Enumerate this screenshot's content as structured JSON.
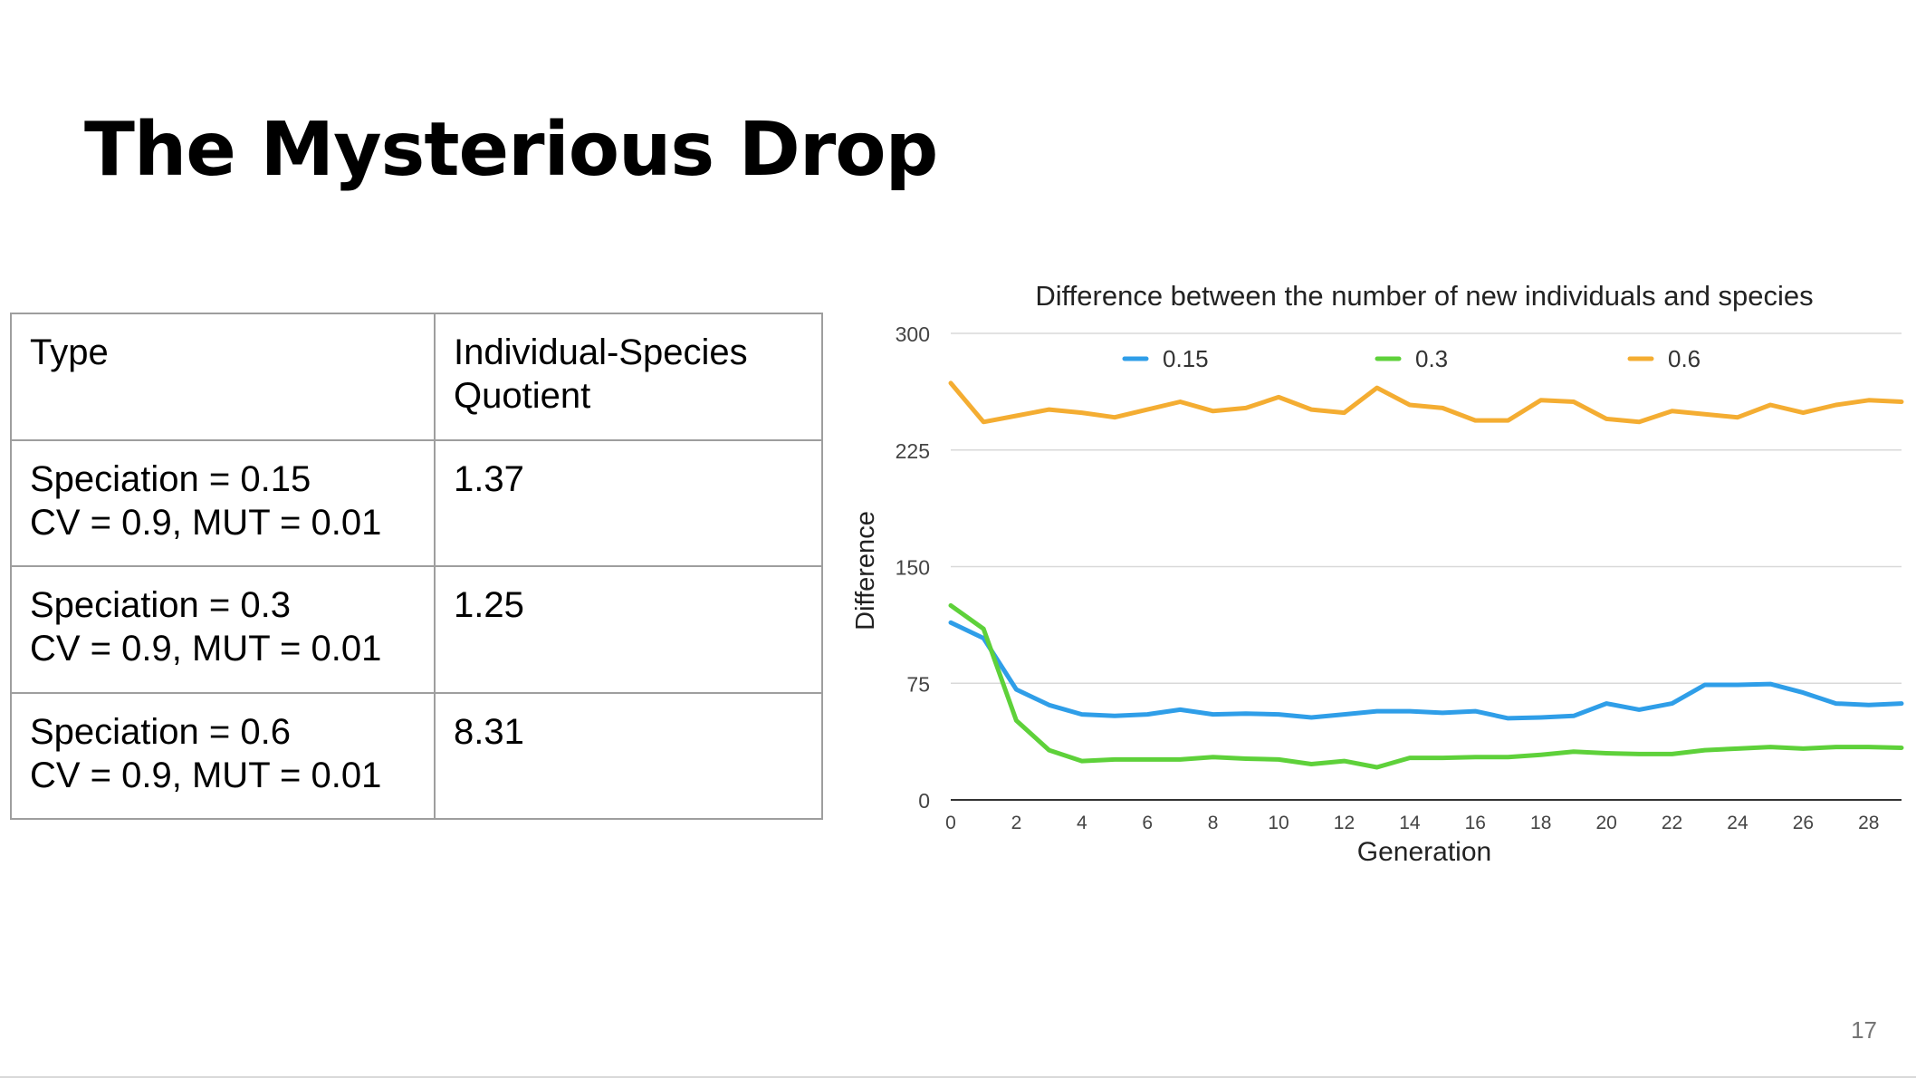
{
  "slide": {
    "title": "The Mysterious Drop",
    "page_number": "17"
  },
  "table": {
    "header": {
      "col1": "Type",
      "col2_line1": "Individual-Species",
      "col2_line2": "Quotient"
    },
    "rows": [
      {
        "line1": "Speciation = 0.15",
        "line2": "CV = 0.9, MUT = 0.01",
        "value": "1.37"
      },
      {
        "line1": "Speciation = 0.3",
        "line2": "CV = 0.9, MUT = 0.01",
        "value": "1.25"
      },
      {
        "line1": "Speciation = 0.6",
        "line2": "CV = 0.9, MUT = 0.01",
        "value": "8.31"
      }
    ]
  },
  "chart_data": {
    "type": "line",
    "title": "Difference between the number of new individuals and species",
    "xlabel": "Generation",
    "ylabel": "Difference",
    "xlim": [
      0,
      29
    ],
    "ylim": [
      0,
      300
    ],
    "x_ticks": [
      0,
      2,
      4,
      6,
      8,
      10,
      12,
      14,
      16,
      18,
      20,
      22,
      24,
      26,
      28
    ],
    "y_ticks": [
      0,
      75,
      150,
      225,
      300
    ],
    "grid": true,
    "legend_position": "top",
    "x": [
      0,
      1,
      2,
      3,
      4,
      5,
      6,
      7,
      8,
      9,
      10,
      11,
      12,
      13,
      14,
      15,
      16,
      17,
      18,
      19,
      20,
      21,
      22,
      23,
      24,
      25,
      26,
      27,
      28,
      29
    ],
    "series": [
      {
        "name": "0.15",
        "color": "#2f9ee8",
        "values": [
          114,
          104,
          71,
          61,
          55,
          54,
          55,
          58,
          55,
          55.5,
          55,
          53,
          55,
          57,
          57,
          56,
          57,
          52.5,
          53,
          54,
          62,
          58,
          62,
          74,
          74,
          74.5,
          69,
          62,
          61,
          62
        ]
      },
      {
        "name": "0.3",
        "color": "#5ed13a",
        "values": [
          125,
          110,
          51,
          32,
          25,
          26,
          26,
          26,
          27.5,
          26.5,
          26,
          23,
          25,
          21,
          27,
          27,
          27.5,
          27.5,
          29,
          31,
          30,
          29.5,
          29.5,
          32,
          33,
          34,
          33,
          34,
          34,
          33.5
        ]
      },
      {
        "name": "0.6",
        "color": "#f4ad32",
        "values": [
          268,
          243,
          247,
          251,
          249,
          246,
          251,
          256,
          250,
          252,
          259,
          251,
          249,
          265,
          254,
          252,
          244,
          244,
          257,
          256,
          245,
          243,
          250,
          248,
          246,
          254,
          249,
          254,
          257,
          256
        ]
      }
    ]
  }
}
